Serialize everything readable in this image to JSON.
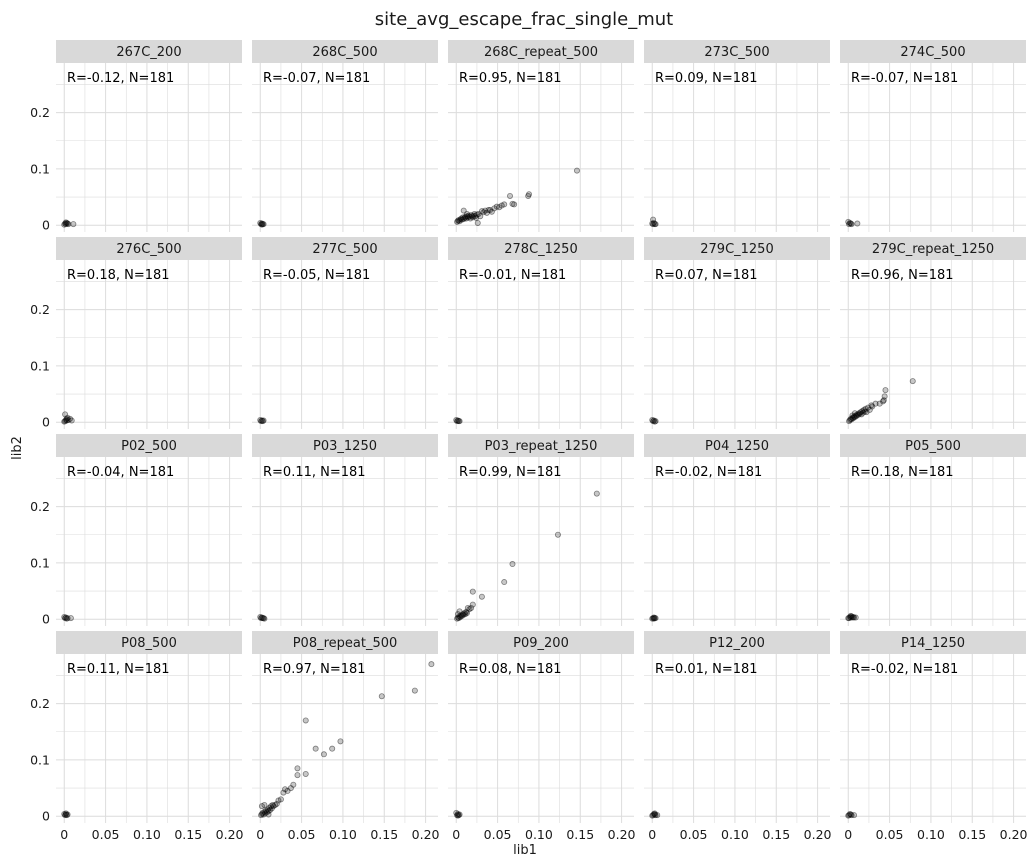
{
  "chart_data": {
    "type": "scatter",
    "title": "site_avg_escape_frac_single_mut",
    "xlabel": "lib1",
    "ylabel": "lib2",
    "xlim": [
      -0.01,
      0.215
    ],
    "ylim": [
      -0.012,
      0.288
    ],
    "x_ticks": [
      0,
      0.05,
      0.1,
      0.15,
      0.2
    ],
    "x_tick_labels": [
      "0",
      "0.05",
      "0.10",
      "0.15",
      "0.20"
    ],
    "y_ticks": [
      0,
      0.1,
      0.2
    ],
    "y_tick_labels": [
      "0",
      "0.1",
      "0.2"
    ],
    "grid": true,
    "layout": {
      "cols": 5,
      "rows": 4
    },
    "point_color": "#000000",
    "strip_color": "#d9d9d9",
    "grid_color": "#dcdcdc",
    "panels": [
      {
        "name": "267C_200",
        "annotation": "R=-0.12, N=181",
        "points": [
          [
            0.001,
            0.003
          ],
          [
            0.002,
            0.002
          ],
          [
            0.003,
            0.004
          ],
          [
            0.0,
            0.001
          ],
          [
            0.004,
            0.003
          ],
          [
            0.011,
            0.002
          ],
          [
            0.005,
            0.002
          ],
          [
            0.002,
            0.005
          ]
        ]
      },
      {
        "name": "268C_500",
        "annotation": "R=-0.07, N=181",
        "points": [
          [
            0.001,
            0.002
          ],
          [
            0.002,
            0.003
          ],
          [
            0.003,
            0.002
          ],
          [
            0.0,
            0.004
          ],
          [
            0.004,
            0.002
          ],
          [
            0.002,
            0.001
          ]
        ]
      },
      {
        "name": "268C_repeat_500",
        "annotation": "R=0.95, N=181",
        "points": [
          [
            0.001,
            0.006
          ],
          [
            0.002,
            0.008
          ],
          [
            0.003,
            0.009
          ],
          [
            0.004,
            0.007
          ],
          [
            0.005,
            0.01
          ],
          [
            0.006,
            0.012
          ],
          [
            0.007,
            0.01
          ],
          [
            0.008,
            0.014
          ],
          [
            0.009,
            0.011
          ],
          [
            0.01,
            0.013
          ],
          [
            0.011,
            0.015
          ],
          [
            0.012,
            0.012
          ],
          [
            0.013,
            0.016
          ],
          [
            0.014,
            0.014
          ],
          [
            0.015,
            0.017
          ],
          [
            0.016,
            0.015
          ],
          [
            0.017,
            0.012
          ],
          [
            0.018,
            0.018
          ],
          [
            0.019,
            0.016
          ],
          [
            0.02,
            0.014
          ],
          [
            0.021,
            0.017
          ],
          [
            0.022,
            0.02
          ],
          [
            0.023,
            0.016
          ],
          [
            0.024,
            0.013
          ],
          [
            0.025,
            0.019
          ],
          [
            0.027,
            0.02
          ],
          [
            0.029,
            0.016
          ],
          [
            0.031,
            0.025
          ],
          [
            0.033,
            0.023
          ],
          [
            0.035,
            0.026
          ],
          [
            0.037,
            0.022
          ],
          [
            0.039,
            0.027
          ],
          [
            0.041,
            0.027
          ],
          [
            0.043,
            0.024
          ],
          [
            0.046,
            0.03
          ],
          [
            0.049,
            0.033
          ],
          [
            0.052,
            0.032
          ],
          [
            0.055,
            0.035
          ],
          [
            0.009,
            0.026
          ],
          [
            0.013,
            0.02
          ],
          [
            0.026,
            0.004
          ],
          [
            0.058,
            0.037
          ],
          [
            0.065,
            0.052
          ],
          [
            0.068,
            0.038
          ],
          [
            0.07,
            0.037
          ],
          [
            0.087,
            0.052
          ],
          [
            0.088,
            0.055
          ],
          [
            0.146,
            0.097
          ]
        ]
      },
      {
        "name": "273C_500",
        "annotation": "R=0.09, N=181",
        "points": [
          [
            0.001,
            0.002
          ],
          [
            0.002,
            0.004
          ],
          [
            0.003,
            0.002
          ],
          [
            0.0,
            0.003
          ],
          [
            0.001,
            0.01
          ],
          [
            0.004,
            0.002
          ]
        ]
      },
      {
        "name": "274C_500",
        "annotation": "R=-0.07, N=181",
        "points": [
          [
            0.001,
            0.002
          ],
          [
            0.002,
            0.004
          ],
          [
            0.003,
            0.003
          ],
          [
            0.0,
            0.006
          ],
          [
            0.004,
            0.002
          ],
          [
            0.011,
            0.003
          ]
        ]
      },
      {
        "name": "276C_500",
        "annotation": "R=0.18, N=181",
        "points": [
          [
            0.001,
            0.002
          ],
          [
            0.002,
            0.004
          ],
          [
            0.003,
            0.003
          ],
          [
            0.0,
            0.001
          ],
          [
            0.004,
            0.008
          ],
          [
            0.005,
            0.004
          ],
          [
            0.007,
            0.006
          ],
          [
            0.001,
            0.014
          ],
          [
            0.009,
            0.003
          ],
          [
            0.003,
            0.006
          ]
        ]
      },
      {
        "name": "277C_500",
        "annotation": "R=-0.05, N=181",
        "points": [
          [
            0.001,
            0.002
          ],
          [
            0.002,
            0.003
          ],
          [
            0.003,
            0.002
          ],
          [
            0.0,
            0.004
          ],
          [
            0.004,
            0.003
          ]
        ]
      },
      {
        "name": "278C_1250",
        "annotation": "R=-0.01, N=181",
        "points": [
          [
            0.001,
            0.002
          ],
          [
            0.002,
            0.003
          ],
          [
            0.003,
            0.002
          ],
          [
            0.0,
            0.004
          ],
          [
            0.004,
            0.002
          ]
        ]
      },
      {
        "name": "279C_1250",
        "annotation": "R=0.07, N=181",
        "points": [
          [
            0.001,
            0.002
          ],
          [
            0.002,
            0.003
          ],
          [
            0.003,
            0.001
          ],
          [
            0.0,
            0.004
          ],
          [
            0.004,
            0.002
          ]
        ]
      },
      {
        "name": "279C_repeat_1250",
        "annotation": "R=0.96, N=181",
        "points": [
          [
            0.001,
            0.002
          ],
          [
            0.002,
            0.004
          ],
          [
            0.003,
            0.006
          ],
          [
            0.004,
            0.005
          ],
          [
            0.005,
            0.008
          ],
          [
            0.006,
            0.007
          ],
          [
            0.007,
            0.01
          ],
          [
            0.008,
            0.009
          ],
          [
            0.009,
            0.012
          ],
          [
            0.01,
            0.011
          ],
          [
            0.011,
            0.014
          ],
          [
            0.012,
            0.013
          ],
          [
            0.013,
            0.016
          ],
          [
            0.014,
            0.015
          ],
          [
            0.015,
            0.018
          ],
          [
            0.016,
            0.014
          ],
          [
            0.017,
            0.02
          ],
          [
            0.018,
            0.017
          ],
          [
            0.019,
            0.022
          ],
          [
            0.02,
            0.019
          ],
          [
            0.021,
            0.024
          ],
          [
            0.022,
            0.018
          ],
          [
            0.024,
            0.026
          ],
          [
            0.026,
            0.022
          ],
          [
            0.028,
            0.03
          ],
          [
            0.029,
            0.028
          ],
          [
            0.033,
            0.033
          ],
          [
            0.038,
            0.033
          ],
          [
            0.042,
            0.037
          ],
          [
            0.043,
            0.039
          ],
          [
            0.044,
            0.046
          ],
          [
            0.045,
            0.057
          ],
          [
            0.078,
            0.073
          ],
          [
            0.005,
            0.012
          ],
          [
            0.008,
            0.016
          ]
        ]
      },
      {
        "name": "P02_500",
        "annotation": "R=-0.04, N=181",
        "points": [
          [
            0.001,
            0.002
          ],
          [
            0.002,
            0.003
          ],
          [
            0.003,
            0.001
          ],
          [
            0.0,
            0.004
          ],
          [
            0.004,
            0.002
          ],
          [
            0.008,
            0.002
          ]
        ]
      },
      {
        "name": "P03_1250",
        "annotation": "R=0.11, N=181",
        "points": [
          [
            0.001,
            0.002
          ],
          [
            0.002,
            0.003
          ],
          [
            0.003,
            0.002
          ],
          [
            0.0,
            0.004
          ],
          [
            0.004,
            0.002
          ],
          [
            0.005,
            0.001
          ]
        ]
      },
      {
        "name": "P03_repeat_1250",
        "annotation": "R=0.99, N=181",
        "points": [
          [
            0.001,
            0.001
          ],
          [
            0.002,
            0.003
          ],
          [
            0.003,
            0.002
          ],
          [
            0.004,
            0.005
          ],
          [
            0.005,
            0.004
          ],
          [
            0.006,
            0.007
          ],
          [
            0.007,
            0.006
          ],
          [
            0.008,
            0.009
          ],
          [
            0.009,
            0.008
          ],
          [
            0.01,
            0.011
          ],
          [
            0.011,
            0.009
          ],
          [
            0.012,
            0.013
          ],
          [
            0.013,
            0.011
          ],
          [
            0.002,
            0.009
          ],
          [
            0.004,
            0.014
          ],
          [
            0.014,
            0.02
          ],
          [
            0.016,
            0.018
          ],
          [
            0.018,
            0.02
          ],
          [
            0.02,
            0.026
          ],
          [
            0.02,
            0.049
          ],
          [
            0.031,
            0.04
          ],
          [
            0.058,
            0.066
          ],
          [
            0.068,
            0.098
          ],
          [
            0.123,
            0.15
          ],
          [
            0.17,
            0.223
          ]
        ]
      },
      {
        "name": "P04_1250",
        "annotation": "R=-0.02, N=181",
        "points": [
          [
            0.001,
            0.002
          ],
          [
            0.002,
            0.001
          ],
          [
            0.003,
            0.002
          ],
          [
            0.0,
            0.001
          ],
          [
            0.004,
            0.002
          ],
          [
            0.002,
            0.003
          ]
        ]
      },
      {
        "name": "P05_500",
        "annotation": "R=0.18, N=181",
        "points": [
          [
            0.001,
            0.002
          ],
          [
            0.002,
            0.004
          ],
          [
            0.003,
            0.003
          ],
          [
            0.0,
            0.002
          ],
          [
            0.004,
            0.005
          ],
          [
            0.005,
            0.003
          ],
          [
            0.006,
            0.004
          ],
          [
            0.007,
            0.003
          ],
          [
            0.009,
            0.003
          ],
          [
            0.003,
            0.006
          ]
        ]
      },
      {
        "name": "P08_500",
        "annotation": "R=0.11, N=181",
        "points": [
          [
            0.001,
            0.002
          ],
          [
            0.002,
            0.003
          ],
          [
            0.003,
            0.002
          ],
          [
            0.0,
            0.004
          ],
          [
            0.004,
            0.003
          ],
          [
            0.002,
            0.005
          ]
        ]
      },
      {
        "name": "P08_repeat_500",
        "annotation": "R=0.97, N=181",
        "points": [
          [
            0.001,
            0.002
          ],
          [
            0.002,
            0.004
          ],
          [
            0.003,
            0.006
          ],
          [
            0.004,
            0.003
          ],
          [
            0.005,
            0.008
          ],
          [
            0.006,
            0.005
          ],
          [
            0.007,
            0.01
          ],
          [
            0.008,
            0.007
          ],
          [
            0.009,
            0.012
          ],
          [
            0.01,
            0.009
          ],
          [
            0.011,
            0.015
          ],
          [
            0.012,
            0.011
          ],
          [
            0.013,
            0.018
          ],
          [
            0.014,
            0.014
          ],
          [
            0.015,
            0.02
          ],
          [
            0.016,
            0.018
          ],
          [
            0.018,
            0.02
          ],
          [
            0.02,
            0.022
          ],
          [
            0.002,
            0.018
          ],
          [
            0.005,
            0.02
          ],
          [
            0.01,
            0.003
          ],
          [
            0.022,
            0.028
          ],
          [
            0.025,
            0.03
          ],
          [
            0.028,
            0.042
          ],
          [
            0.03,
            0.048
          ],
          [
            0.033,
            0.045
          ],
          [
            0.037,
            0.05
          ],
          [
            0.04,
            0.056
          ],
          [
            0.045,
            0.073
          ],
          [
            0.045,
            0.085
          ],
          [
            0.055,
            0.075
          ],
          [
            0.055,
            0.17
          ],
          [
            0.067,
            0.12
          ],
          [
            0.077,
            0.11
          ],
          [
            0.087,
            0.12
          ],
          [
            0.097,
            0.133
          ],
          [
            0.147,
            0.213
          ],
          [
            0.187,
            0.223
          ],
          [
            0.207,
            0.27
          ]
        ]
      },
      {
        "name": "P09_200",
        "annotation": "R=0.08, N=181",
        "points": [
          [
            0.001,
            0.002
          ],
          [
            0.002,
            0.004
          ],
          [
            0.003,
            0.002
          ],
          [
            0.0,
            0.006
          ],
          [
            0.004,
            0.003
          ],
          [
            0.002,
            0.001
          ]
        ]
      },
      {
        "name": "P12_200",
        "annotation": "R=0.01, N=181",
        "points": [
          [
            0.001,
            0.002
          ],
          [
            0.002,
            0.004
          ],
          [
            0.003,
            0.003
          ],
          [
            0.0,
            0.001
          ],
          [
            0.004,
            0.002
          ],
          [
            0.006,
            0.002
          ],
          [
            0.003,
            0.005
          ]
        ]
      },
      {
        "name": "P14_1250",
        "annotation": "R=-0.02, N=181",
        "points": [
          [
            0.001,
            0.002
          ],
          [
            0.002,
            0.004
          ],
          [
            0.003,
            0.003
          ],
          [
            0.0,
            0.001
          ],
          [
            0.004,
            0.002
          ],
          [
            0.007,
            0.002
          ]
        ]
      }
    ]
  }
}
